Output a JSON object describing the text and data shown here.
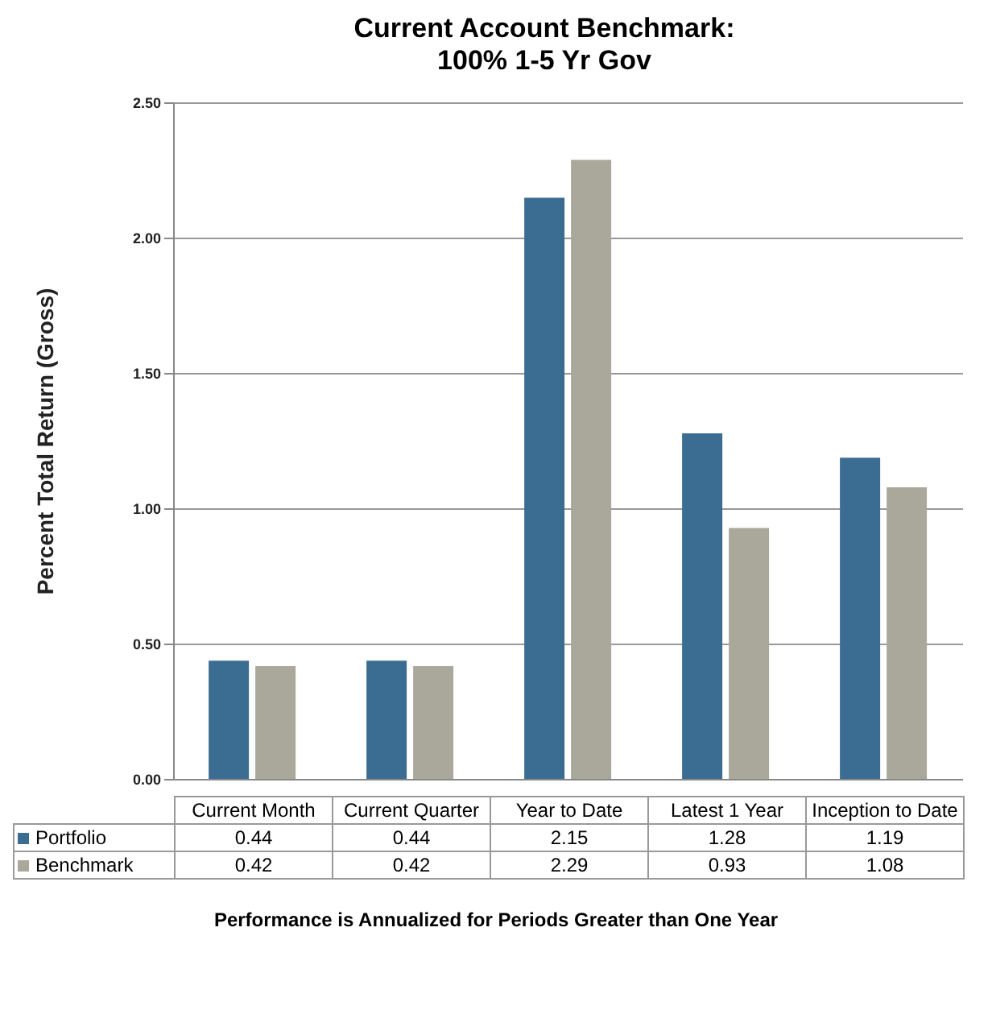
{
  "chart_data": {
    "type": "bar",
    "title": "Current Account Benchmark:\n100% 1-5 Yr Gov",
    "ylabel": "Percent Total Return (Gross)",
    "categories": [
      "Current Month",
      "Current Quarter",
      "Year to Date",
      "Latest 1 Year",
      "Inception to Date"
    ],
    "series": [
      {
        "name": "Portfolio",
        "color": "#3b6d92",
        "values": [
          0.44,
          0.44,
          2.15,
          1.28,
          1.19
        ]
      },
      {
        "name": "Benchmark",
        "color": "#a9a89b",
        "values": [
          0.42,
          0.42,
          2.29,
          0.93,
          1.08
        ]
      }
    ],
    "ylim": [
      0,
      2.5
    ],
    "yticks": [
      {
        "value": 0,
        "label": "0.00"
      },
      {
        "value": 0.5,
        "label": "0.50"
      },
      {
        "value": 1,
        "label": "1.00"
      },
      {
        "value": 1.5,
        "label": "1.50"
      },
      {
        "value": 2,
        "label": "2.00"
      },
      {
        "value": 2.5,
        "label": "2.50"
      }
    ],
    "grid": "y",
    "legend": "bottom",
    "data_labels": true,
    "annotations": [
      "Performance is Annualized for Periods Greater than One Year"
    ]
  }
}
